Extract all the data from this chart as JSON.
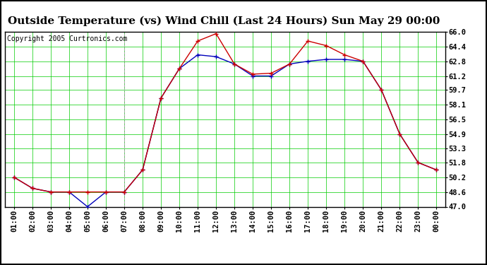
{
  "title": "Outside Temperature (vs) Wind Chill (Last 24 Hours) Sun May 29 00:00",
  "copyright": "Copyright 2005 Curtronics.com",
  "x_labels": [
    "01:00",
    "02:00",
    "03:00",
    "04:00",
    "05:00",
    "06:00",
    "07:00",
    "08:00",
    "09:00",
    "10:00",
    "11:00",
    "12:00",
    "13:00",
    "14:00",
    "15:00",
    "16:00",
    "17:00",
    "18:00",
    "19:00",
    "20:00",
    "21:00",
    "22:00",
    "23:00",
    "00:00"
  ],
  "temp_blue": [
    50.2,
    49.0,
    48.6,
    48.6,
    47.0,
    48.6,
    48.6,
    51.0,
    58.8,
    62.0,
    63.5,
    63.3,
    62.5,
    61.2,
    61.2,
    62.5,
    62.8,
    63.0,
    63.0,
    62.8,
    59.7,
    54.9,
    51.8,
    51.0
  ],
  "wind_chill_red": [
    50.2,
    49.0,
    48.6,
    48.6,
    48.6,
    48.6,
    48.6,
    51.0,
    58.8,
    62.0,
    65.0,
    65.8,
    62.5,
    61.4,
    61.5,
    62.5,
    65.0,
    64.5,
    63.5,
    62.8,
    59.7,
    54.9,
    51.8,
    51.0
  ],
  "ylim": [
    47.0,
    66.0
  ],
  "yticks": [
    47.0,
    48.6,
    50.2,
    51.8,
    53.3,
    54.9,
    56.5,
    58.1,
    59.7,
    61.2,
    62.8,
    64.4,
    66.0
  ],
  "bg_color": "#ffffff",
  "plot_bg_color": "#ffffff",
  "grid_color": "#00cc00",
  "blue_color": "#0000bb",
  "red_color": "#cc0000",
  "title_fontsize": 11,
  "tick_fontsize": 7.5,
  "copyright_fontsize": 7
}
